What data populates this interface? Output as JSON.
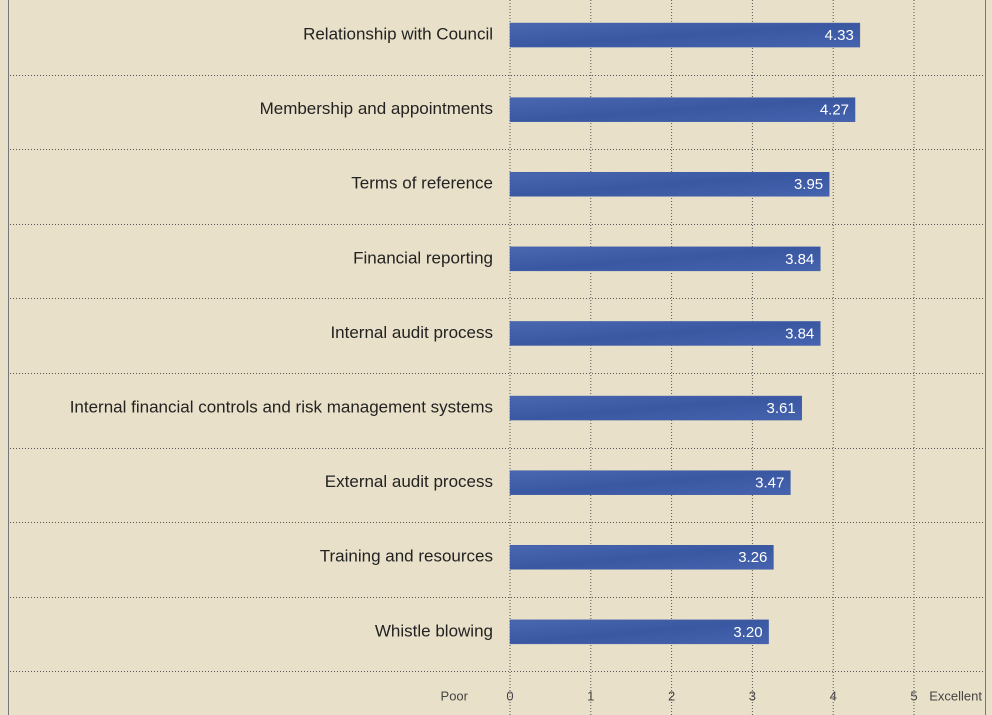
{
  "chart_data": {
    "type": "barh",
    "categories": [
      "Relationship with Council",
      "Membership and appointments",
      "Terms of reference",
      "Financial reporting",
      "Internal audit process",
      "Internal financial controls and risk management systems",
      "External audit process",
      "Training and resources",
      "Whistle blowing"
    ],
    "values": [
      4.33,
      4.27,
      3.95,
      3.84,
      3.84,
      3.61,
      3.47,
      3.26,
      3.2
    ],
    "value_labels": [
      "4.33",
      "4.27",
      "3.95",
      "3.84",
      "3.84",
      "3.61",
      "3.47",
      "3.26",
      "3.20"
    ],
    "color": "#3d5ba6",
    "xlim": [
      0,
      5
    ],
    "xticks": [
      0,
      1,
      2,
      3,
      4,
      5
    ],
    "x_low_label": "Poor",
    "x_high_label": "Excellent",
    "grid": true
  }
}
